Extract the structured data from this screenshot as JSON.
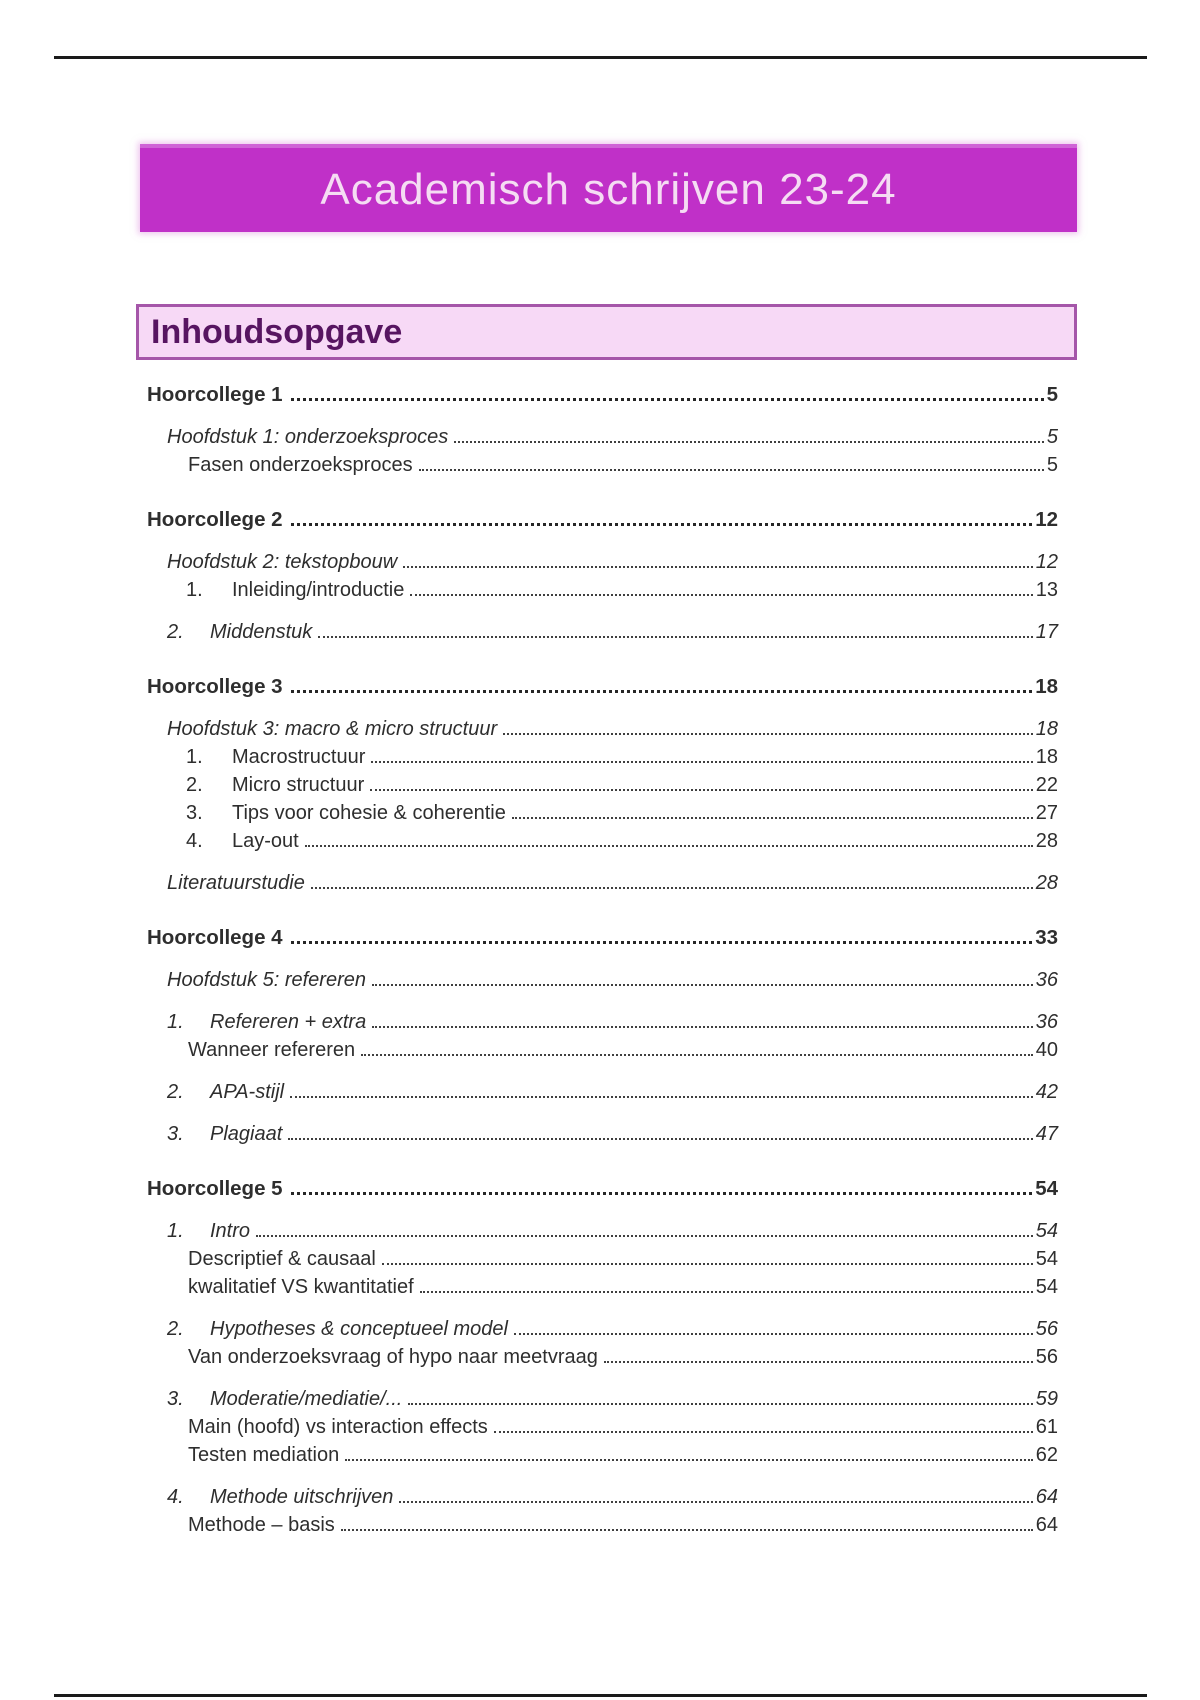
{
  "banner": {
    "title": "Academisch schrijven 23-24"
  },
  "toc": {
    "heading": "Inhoudsopgave",
    "entries": [
      {
        "type": "h1",
        "num": "",
        "label": "Hoorcollege 1",
        "page": "5"
      },
      {
        "type": "h2",
        "num": "",
        "label": "Hoofdstuk 1: onderzoeksproces",
        "page": "5"
      },
      {
        "type": "h3",
        "num": "",
        "label": "Fasen onderzoeksproces",
        "page": "5"
      },
      {
        "type": "h1",
        "num": "",
        "label": "Hoorcollege 2",
        "page": "12"
      },
      {
        "type": "h2",
        "num": "",
        "label": "Hoofdstuk 2: tekstopbouw",
        "page": "12"
      },
      {
        "type": "h3n",
        "num": "1.",
        "label": "Inleiding/introductie",
        "page": "13"
      },
      {
        "type": "h2n",
        "num": "2.",
        "label": "Middenstuk",
        "page": "17"
      },
      {
        "type": "h1",
        "num": "",
        "label": "Hoorcollege 3",
        "page": "18"
      },
      {
        "type": "h2",
        "num": "",
        "label": "Hoofdstuk 3: macro & micro structuur",
        "page": "18"
      },
      {
        "type": "h3n",
        "num": "1.",
        "label": "Macrostructuur",
        "page": "18"
      },
      {
        "type": "h3n",
        "num": "2.",
        "label": "Micro structuur",
        "page": "22"
      },
      {
        "type": "h3n",
        "num": "3.",
        "label": "Tips voor cohesie & coherentie",
        "page": "27"
      },
      {
        "type": "h3n",
        "num": "4.",
        "label": "Lay-out",
        "page": "28"
      },
      {
        "type": "h2",
        "num": "",
        "label": "Literatuurstudie",
        "page": "28"
      },
      {
        "type": "h1",
        "num": "",
        "label": "Hoorcollege 4",
        "page": "33"
      },
      {
        "type": "h2",
        "num": "",
        "label": "Hoofdstuk 5: refereren",
        "page": "36"
      },
      {
        "type": "h2n",
        "num": "1.",
        "label": "Refereren + extra",
        "page": "36"
      },
      {
        "type": "h3",
        "num": "",
        "label": "Wanneer refereren",
        "page": "40"
      },
      {
        "type": "h2n",
        "num": "2.",
        "label": "APA-stijl",
        "page": "42"
      },
      {
        "type": "h2n",
        "num": "3.",
        "label": "Plagiaat",
        "page": "47"
      },
      {
        "type": "h1",
        "num": "",
        "label": "Hoorcollege 5",
        "page": "54"
      },
      {
        "type": "h2n",
        "num": "1.",
        "label": "Intro",
        "page": "54"
      },
      {
        "type": "h3",
        "num": "",
        "label": "Descriptief & causaal",
        "page": "54"
      },
      {
        "type": "h3",
        "num": "",
        "label": "kwalitatief VS kwantitatief",
        "page": "54"
      },
      {
        "type": "h2n",
        "num": "2.",
        "label": "Hypotheses & conceptueel model",
        "page": "56"
      },
      {
        "type": "h3",
        "num": "",
        "label": "Van onderzoeksvraag of hypo naar meetvraag",
        "page": "56"
      },
      {
        "type": "h2n",
        "num": "3.",
        "label": "Moderatie/mediatie/...",
        "page": "59"
      },
      {
        "type": "h3",
        "num": "",
        "label": "Main (hoofd) vs interaction effects",
        "page": "61"
      },
      {
        "type": "h3",
        "num": "",
        "label": "Testen mediation",
        "page": "62"
      },
      {
        "type": "h2n",
        "num": "4.",
        "label": "Methode uitschrijven",
        "page": "64"
      },
      {
        "type": "h3",
        "num": "",
        "label": "Methode – basis",
        "page": "64"
      }
    ]
  },
  "colors": {
    "banner_bg": "#c030c8",
    "banner_text": "#f5dcf3",
    "box_bg": "#f7d9f6",
    "box_border": "#a556a9",
    "box_text": "#571561",
    "text": "#2e2e2e",
    "dots": "#3f3f3f"
  }
}
